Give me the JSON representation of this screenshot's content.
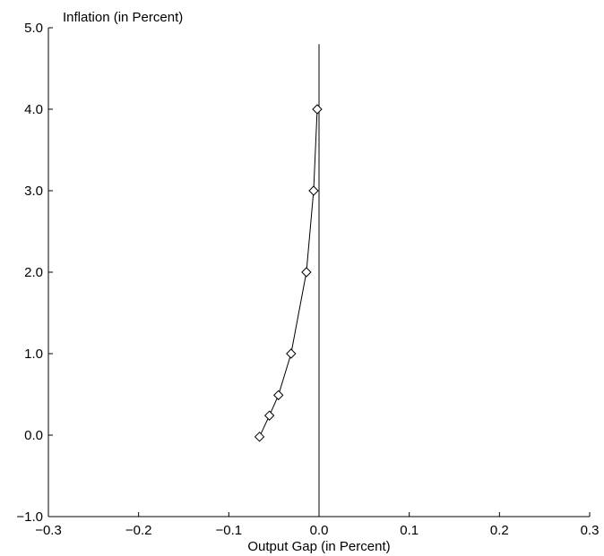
{
  "chart_data": {
    "type": "line",
    "title": "",
    "xlabel": "Output Gap (in Percent)",
    "ylabel": "Inflation (in Percent)",
    "xlim": [
      -0.3,
      0.3
    ],
    "ylim": [
      -1.0,
      5.0
    ],
    "xticks": [
      "−0.3",
      "−0.2",
      "−0.1",
      "0.0",
      "0.1",
      "0.2",
      "0.3"
    ],
    "yticks": [
      "−1.0",
      "0.0",
      "1.0",
      "2.0",
      "3.0",
      "4.0",
      "5.0"
    ],
    "grid": false,
    "marker": "diamond",
    "series": [
      {
        "x": [
          -0.066,
          -0.055,
          -0.045,
          -0.031,
          -0.014,
          -0.006,
          -0.002
        ],
        "y": [
          -0.02,
          0.24,
          0.49,
          1.0,
          2.0,
          3.0,
          4.0
        ]
      }
    ],
    "annotations": [
      {
        "type": "vertical-line",
        "x": 0.0,
        "y_range": [
          -1.0,
          4.8
        ]
      }
    ]
  }
}
